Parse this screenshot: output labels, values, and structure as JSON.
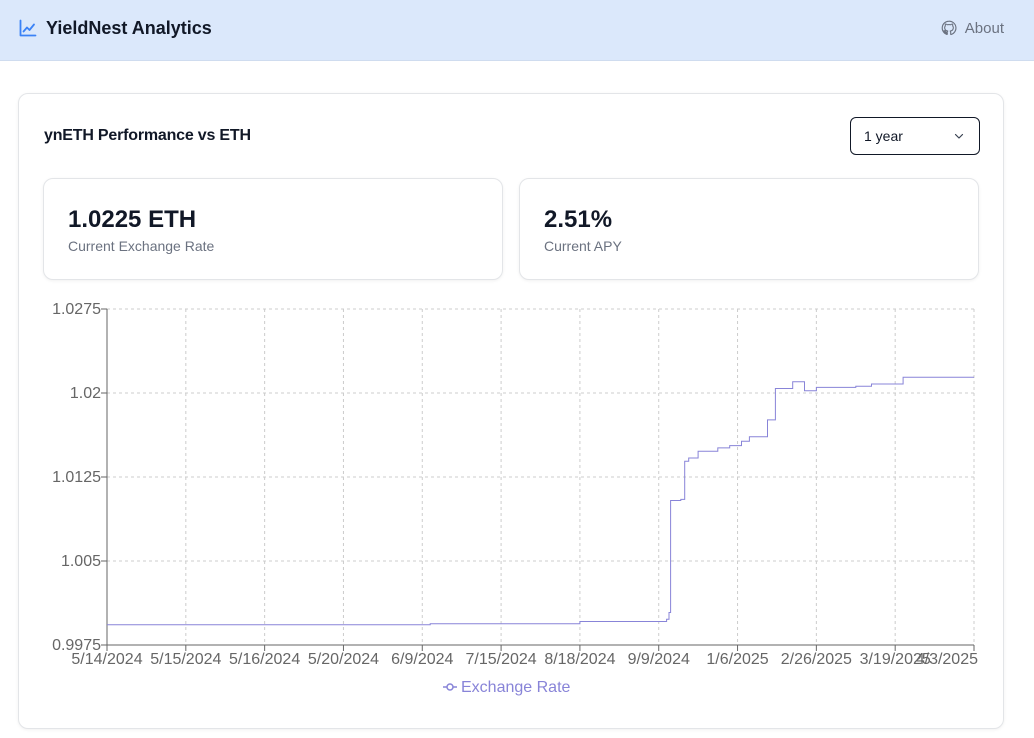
{
  "header": {
    "title": "YieldNest Analytics",
    "about_label": "About",
    "brand_icon": "line-chart-icon",
    "about_icon": "github-icon"
  },
  "card": {
    "title": "ynETH Performance vs ETH",
    "range_select": {
      "selected": "1 year",
      "icon": "chevron-down-icon"
    }
  },
  "stats": [
    {
      "value": "1.0225 ETH",
      "label": "Current Exchange Rate"
    },
    {
      "value": "2.51%",
      "label": "Current APY"
    }
  ],
  "colors": {
    "header_bg": "#dbe8fb",
    "series": "#8884d8",
    "grid": "#cccccc",
    "axis": "#666666"
  },
  "chart_data": {
    "type": "line",
    "title": "",
    "xlabel": "",
    "ylabel": "",
    "ylim": [
      0.9975,
      1.0275
    ],
    "yticks": [
      "0.9975",
      "1.005",
      "1.0125",
      "1.02",
      "1.0275"
    ],
    "categories": [
      "5/14/2024",
      "5/15/2024",
      "5/16/2024",
      "5/20/2024",
      "6/9/2024",
      "7/15/2024",
      "8/18/2024",
      "9/9/2024",
      "1/6/2025",
      "2/26/2025",
      "3/19/2025",
      "4/3/2025"
    ],
    "grid": true,
    "legend_position": "bottom",
    "series": [
      {
        "name": "Exchange Rate",
        "x": [
          0,
          1,
          2,
          3,
          4,
          4.1,
          5,
          5.6,
          6,
          7,
          7.1,
          7.13,
          7.15,
          7.28,
          7.33,
          7.38,
          7.42,
          7.5,
          7.6,
          7.75,
          7.9,
          8.05,
          8.15,
          8.3,
          8.38,
          8.48,
          8.55,
          8.7,
          8.73,
          8.8,
          8.85,
          9,
          9.3,
          9.5,
          9.7,
          10,
          10.1,
          11
        ],
        "values": [
          0.9993,
          0.9993,
          0.9993,
          0.9993,
          0.9993,
          0.9994,
          0.9994,
          0.9994,
          0.9996,
          0.9996,
          0.9998,
          1.0004,
          1.0104,
          1.0105,
          1.0139,
          1.0142,
          1.0142,
          1.0148,
          1.0148,
          1.0151,
          1.0153,
          1.0157,
          1.0161,
          1.0161,
          1.0176,
          1.0204,
          1.0204,
          1.021,
          1.021,
          1.021,
          1.0202,
          1.0205,
          1.0205,
          1.0206,
          1.0208,
          1.0208,
          1.0214,
          1.0214
        ]
      }
    ]
  }
}
